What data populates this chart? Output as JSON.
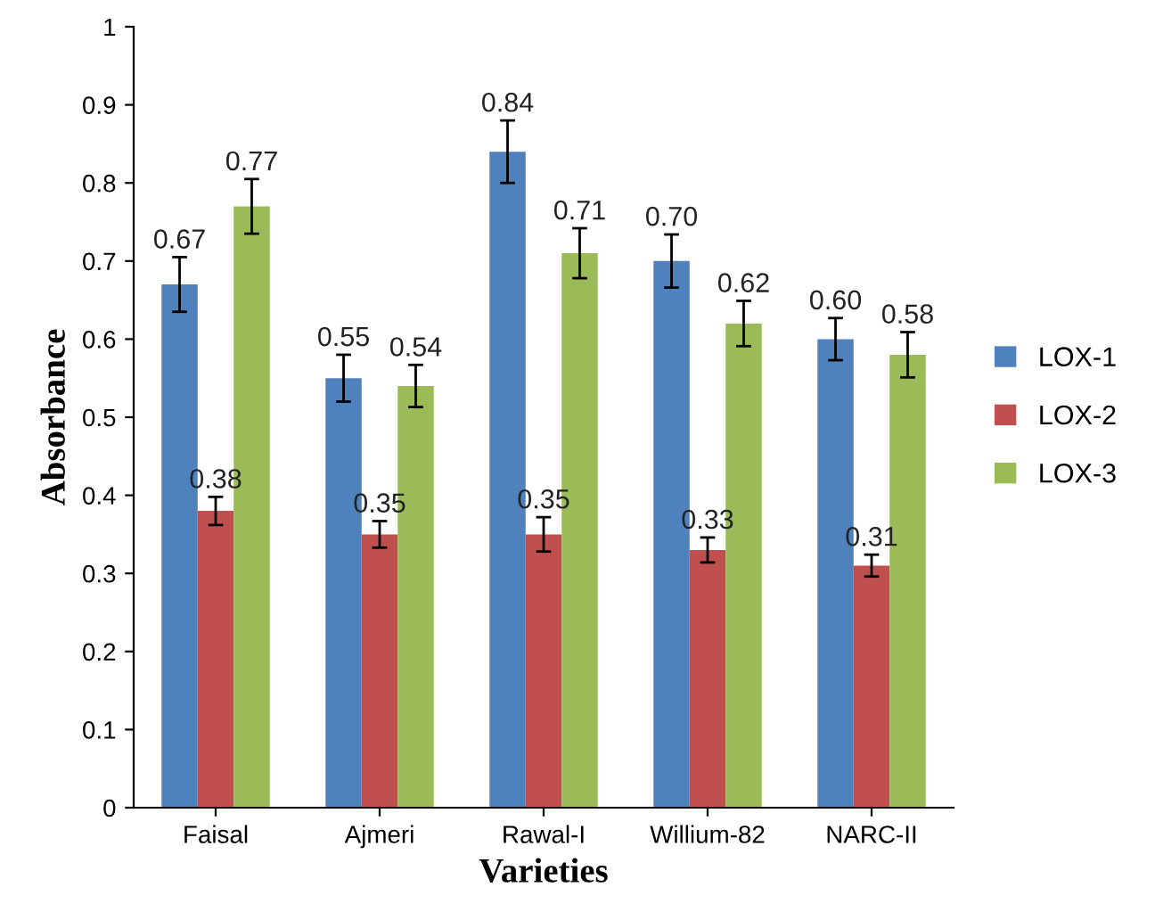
{
  "chart_data": {
    "type": "bar",
    "xlabel": "Varieties",
    "ylabel": "Absorbance",
    "categories": [
      "Faisal",
      "Ajmeri",
      "Rawal-I",
      "Willium-82",
      "NARC-II"
    ],
    "series": [
      {
        "name": "LOX-1",
        "color": "#4f81bd",
        "values": [
          0.67,
          0.55,
          0.84,
          0.7,
          0.6
        ],
        "errors": [
          0.035,
          0.03,
          0.04,
          0.034,
          0.027
        ],
        "value_labels": [
          "0.67",
          "0.55",
          "0.84",
          "0.70",
          "0.60"
        ]
      },
      {
        "name": "LOX-2",
        "color": "#c0504d",
        "values": [
          0.38,
          0.35,
          0.35,
          0.33,
          0.31
        ],
        "errors": [
          0.018,
          0.017,
          0.022,
          0.016,
          0.014
        ],
        "value_labels": [
          "0.38",
          "0.35",
          "0.35",
          "0.33",
          "0.31"
        ]
      },
      {
        "name": "LOX-3",
        "color": "#9bbb59",
        "values": [
          0.77,
          0.54,
          0.71,
          0.62,
          0.58
        ],
        "errors": [
          0.035,
          0.027,
          0.032,
          0.029,
          0.029
        ],
        "value_labels": [
          "0.77",
          "0.54",
          "0.71",
          "0.62",
          "0.58"
        ]
      }
    ],
    "ylim": [
      0,
      1
    ],
    "yticks": [
      0,
      0.1,
      0.2,
      0.3,
      0.4,
      0.5,
      0.6,
      0.7,
      0.8,
      0.9,
      1
    ],
    "grid": false,
    "legend": "right"
  }
}
